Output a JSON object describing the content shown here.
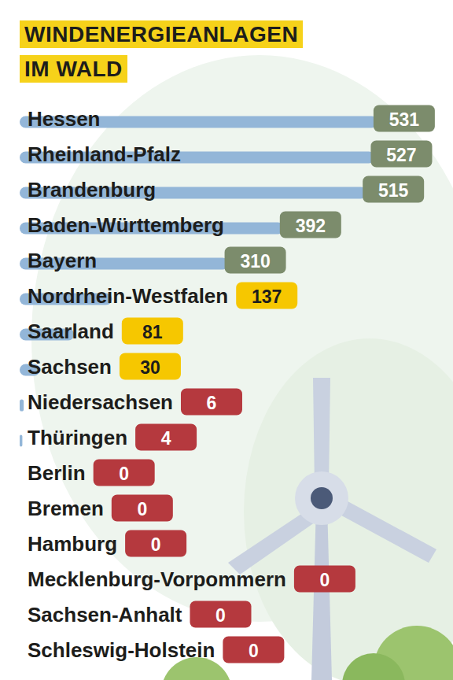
{
  "chart_data": {
    "type": "bar",
    "title": "WINDENERGIEANLAGEN IM WALD",
    "orientation": "horizontal",
    "categories": [
      "Hessen",
      "Rheinland-Pfalz",
      "Brandenburg",
      "Baden-Württemberg",
      "Bayern",
      "Nordrhein-Westfalen",
      "Saarland",
      "Sachsen",
      "Niedersachsen",
      "Thüringen",
      "Berlin",
      "Bremen",
      "Hamburg",
      "Mecklenburg-Vorpommern",
      "Sachsen-Anhalt",
      "Schleswig-Holstein"
    ],
    "values": [
      531,
      527,
      515,
      392,
      310,
      137,
      81,
      30,
      6,
      4,
      0,
      0,
      0,
      0,
      0,
      0
    ],
    "color": "#93b6d8",
    "colors": [
      "#7c8c6c",
      "#7c8c6c",
      "#7c8c6c",
      "#7c8c6c",
      "#7c8c6c",
      "#f6c700",
      "#f6c700",
      "#f6c700",
      "#b5393e",
      "#b5393e",
      "#b5393e",
      "#b5393e",
      "#b5393e",
      "#b5393e",
      "#b5393e",
      "#b5393e"
    ],
    "xlim": [
      0,
      600
    ],
    "data_labels": true,
    "tick_labels": false,
    "grid": false
  }
}
